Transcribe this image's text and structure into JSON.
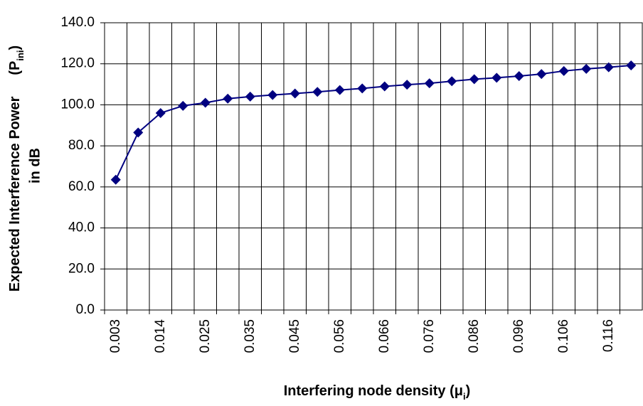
{
  "chart_data": {
    "type": "line",
    "y_label": {
      "line1": "Expected Interference Power",
      "prefix": "(P",
      "subscript": "ini",
      "suffix": ")",
      "line2": "in dB"
    },
    "x_label": {
      "prefix": "Interfering node density (μ",
      "subscript": "i",
      "suffix": ")"
    },
    "categories": [
      "0.003",
      null,
      "0.014",
      null,
      "0.025",
      null,
      "0.035",
      null,
      "0.045",
      null,
      "0.056",
      null,
      "0.066",
      null,
      "0.076",
      null,
      "0.086",
      null,
      "0.096",
      null,
      "0.106",
      null,
      "0.116",
      null
    ],
    "series": [
      {
        "color": "#000080",
        "values": [
          63.5,
          86.5,
          96,
          99.5,
          101,
          103,
          104,
          104.8,
          105.5,
          106.3,
          107.2,
          108,
          109,
          109.8,
          110.5,
          111.5,
          112.5,
          113.2,
          114,
          115,
          116.5,
          117.5,
          118.3,
          119.2
        ]
      }
    ],
    "ylim": [
      0,
      140
    ],
    "yticks": [
      {
        "value": 0,
        "label": "0.0"
      },
      {
        "value": 20,
        "label": "20.0"
      },
      {
        "value": 40,
        "label": "40.0"
      },
      {
        "value": 60,
        "label": "60.0"
      },
      {
        "value": 80,
        "label": "80.0"
      },
      {
        "value": 100,
        "label": "100.0"
      },
      {
        "value": 120,
        "label": "120.0"
      },
      {
        "value": 140,
        "label": "140.0"
      }
    ],
    "grid": true
  }
}
